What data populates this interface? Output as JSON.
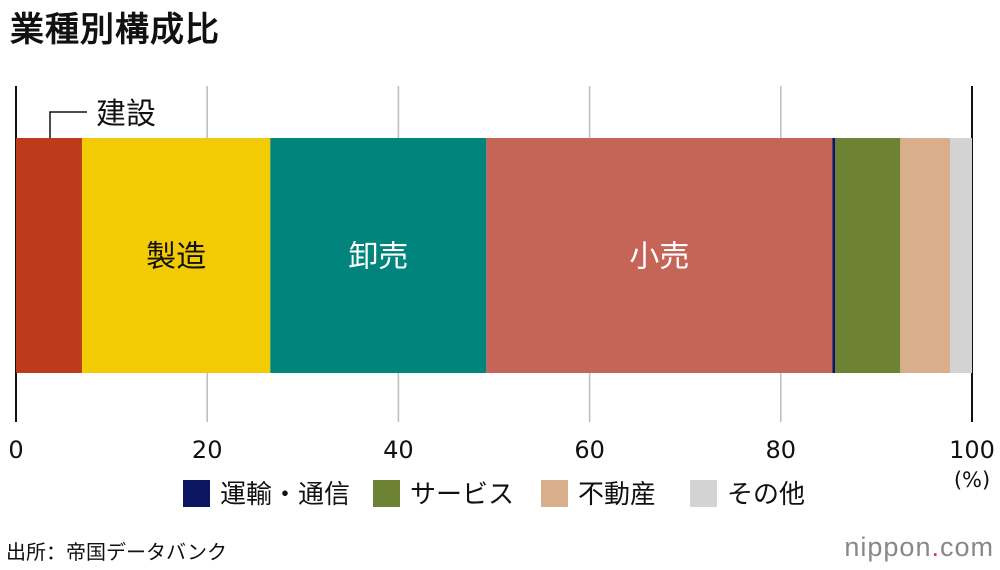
{
  "chart_data": {
    "type": "bar",
    "orientation": "horizontal-stacked",
    "title": "業種別構成比",
    "unit": "(%)",
    "xlim": [
      0,
      100
    ],
    "xticks": [
      "0",
      "20",
      "40",
      "60",
      "80",
      "100"
    ],
    "grid": true,
    "legend_position": "bottom",
    "segments": [
      {
        "name": "建設",
        "value": 6.9,
        "color": "#bd3a1c",
        "label_mode": "callout"
      },
      {
        "name": "製造",
        "value": 19.7,
        "color": "#f2cb05",
        "label_mode": "inside"
      },
      {
        "name": "卸売",
        "value": 22.6,
        "color": "#00847b",
        "label_mode": "inside"
      },
      {
        "name": "小売",
        "value": 36.2,
        "color": "#c46557",
        "label_mode": "inside"
      },
      {
        "name": "運輸・通信",
        "value": 0.3,
        "color": "#0c1660",
        "label_mode": "legend"
      },
      {
        "name": "サービス",
        "value": 6.8,
        "color": "#6e8233",
        "label_mode": "legend"
      },
      {
        "name": "不動産",
        "value": 5.2,
        "color": "#d9ae8b",
        "label_mode": "legend"
      },
      {
        "name": "その他",
        "value": 2.3,
        "color": "#d3d3d3",
        "label_mode": "legend"
      }
    ]
  },
  "footer": {
    "source": "出所：帝国データバンク",
    "brand_main": "nippon",
    "brand_dot": ".",
    "brand_tld": "com"
  }
}
